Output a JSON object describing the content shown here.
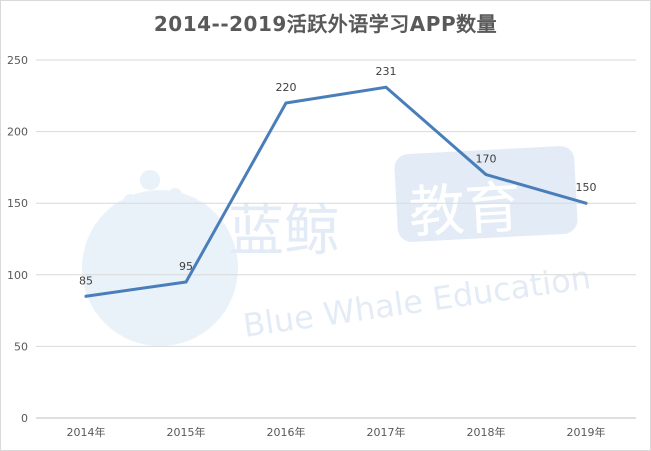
{
  "chart_data": {
    "type": "line",
    "title": "2014--2019活跃外语学习APP数量",
    "categories": [
      "2014年",
      "2015年",
      "2016年",
      "2017年",
      "2018年",
      "2019年"
    ],
    "series": [
      {
        "values": [
          85,
          95,
          220,
          231,
          170,
          150
        ]
      }
    ],
    "ylim": [
      0,
      250
    ],
    "yticks": [
      0,
      50,
      100,
      150,
      200,
      250
    ],
    "grid": true,
    "data_labels": true,
    "line_color": "#4a7ebb"
  },
  "watermark": {
    "chinese": "蓝鲸",
    "chinese_badge": "教育",
    "english": "Blue Whale Education",
    "color": "#dce8f4"
  }
}
